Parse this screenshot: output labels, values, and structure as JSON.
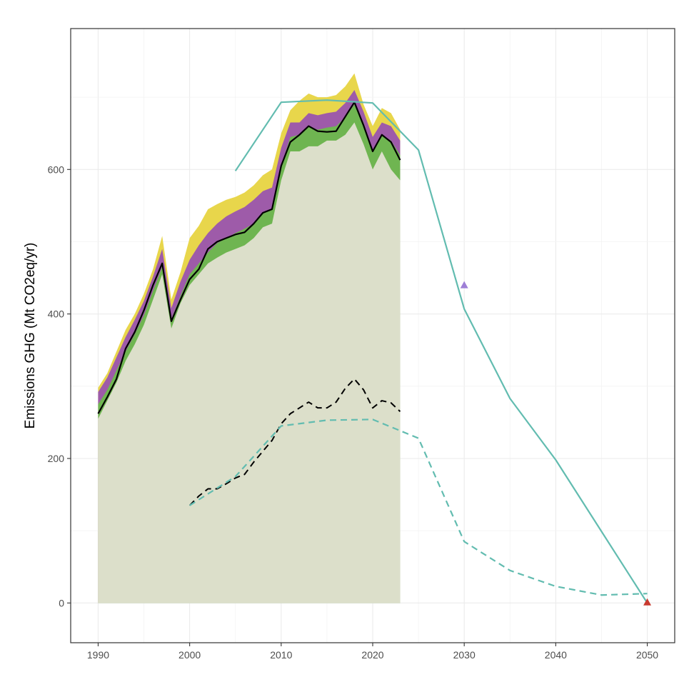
{
  "chart_data": {
    "type": "area",
    "title": "",
    "xlabel": "",
    "ylabel": "Emissions GHG (Mt CO2eq/yr)",
    "xlim": [
      1987,
      2053
    ],
    "ylim": [
      -55,
      795
    ],
    "x_ticks": [
      1990,
      2000,
      2010,
      2020,
      2030,
      2040,
      2050
    ],
    "y_ticks": [
      0,
      200,
      400,
      600
    ],
    "grid": true,
    "legend": "none",
    "x": [
      1990,
      1991,
      1992,
      1993,
      1994,
      1995,
      1996,
      1997,
      1998,
      1999,
      2000,
      2001,
      2002,
      2003,
      2004,
      2005,
      2006,
      2007,
      2008,
      2009,
      2010,
      2011,
      2012,
      2013,
      2014,
      2015,
      2016,
      2017,
      2018,
      2019,
      2020,
      2021,
      2022,
      2023
    ],
    "series": [
      {
        "name": "",
        "kind": "area-base",
        "color": "#dcdfca",
        "values": [
          255,
          280,
          305,
          335,
          358,
          385,
          420,
          455,
          380,
          415,
          440,
          455,
          470,
          478,
          485,
          490,
          495,
          505,
          520,
          525,
          585,
          625,
          625,
          632,
          632,
          640,
          640,
          648,
          665,
          635,
          600,
          625,
          600,
          585
        ]
      },
      {
        "name": "",
        "kind": "area-band",
        "color": "#6fb551",
        "values": [
          275,
          295,
          322,
          348,
          372,
          398,
          432,
          465,
          393,
          425,
          455,
          470,
          485,
          498,
          505,
          512,
          518,
          525,
          540,
          545,
          605,
          645,
          648,
          660,
          655,
          658,
          660,
          672,
          690,
          665,
          625,
          648,
          640,
          620
        ]
      },
      {
        "name": "",
        "kind": "area-band",
        "color": "#9e5ba9",
        "values": [
          292,
          312,
          340,
          368,
          392,
          418,
          452,
          490,
          408,
          445,
          475,
          495,
          512,
          525,
          535,
          542,
          548,
          558,
          570,
          575,
          630,
          665,
          665,
          678,
          675,
          678,
          680,
          692,
          710,
          680,
          645,
          665,
          660,
          640
        ]
      },
      {
        "name": "",
        "kind": "area-band",
        "color": "#e8d64b",
        "values": [
          298,
          318,
          348,
          378,
          400,
          428,
          462,
          508,
          420,
          458,
          505,
          522,
          545,
          552,
          558,
          562,
          568,
          578,
          592,
          600,
          650,
          682,
          695,
          705,
          700,
          700,
          703,
          715,
          733,
          690,
          660,
          685,
          678,
          655
        ]
      },
      {
        "name": "",
        "kind": "line",
        "color": "#000000",
        "dash": "solid",
        "values": [
          262,
          285,
          310,
          352,
          375,
          405,
          440,
          470,
          390,
          420,
          448,
          462,
          490,
          500,
          505,
          510,
          513,
          525,
          540,
          545,
          605,
          638,
          648,
          660,
          653,
          652,
          653,
          673,
          693,
          661,
          625,
          648,
          638,
          613
        ]
      }
    ],
    "extra_lines": [
      {
        "name": "",
        "color": "#000000",
        "dash": "dashed",
        "points": [
          [
            2000,
            135
          ],
          [
            2001,
            148
          ],
          [
            2002,
            158
          ],
          [
            2003,
            158
          ],
          [
            2004,
            165
          ],
          [
            2005,
            173
          ],
          [
            2006,
            178
          ],
          [
            2007,
            195
          ],
          [
            2008,
            210
          ],
          [
            2009,
            225
          ],
          [
            2010,
            248
          ],
          [
            2011,
            262
          ],
          [
            2012,
            270
          ],
          [
            2013,
            278
          ],
          [
            2014,
            270
          ],
          [
            2015,
            270
          ],
          [
            2016,
            278
          ],
          [
            2017,
            297
          ],
          [
            2018,
            310
          ],
          [
            2019,
            295
          ],
          [
            2020,
            270
          ],
          [
            2021,
            280
          ],
          [
            2022,
            277
          ],
          [
            2023,
            265
          ]
        ]
      },
      {
        "name": "",
        "color": "#62bcb0",
        "dash": "solid",
        "points": [
          [
            2005,
            598
          ],
          [
            2010,
            693
          ],
          [
            2015,
            696
          ],
          [
            2020,
            692
          ],
          [
            2025,
            627
          ],
          [
            2030,
            407
          ],
          [
            2035,
            283
          ],
          [
            2040,
            198
          ],
          [
            2050,
            0
          ]
        ]
      },
      {
        "name": "",
        "color": "#62bcb0",
        "dash": "dashed",
        "points": [
          [
            2000,
            135
          ],
          [
            2005,
            175
          ],
          [
            2010,
            245
          ],
          [
            2015,
            253
          ],
          [
            2020,
            254
          ],
          [
            2025,
            228
          ],
          [
            2030,
            85
          ],
          [
            2035,
            45
          ],
          [
            2040,
            23
          ],
          [
            2045,
            11
          ],
          [
            2050,
            13
          ]
        ]
      }
    ],
    "markers": [
      {
        "name": "",
        "shape": "triangle",
        "color": "#9e7fd6",
        "x": 2030,
        "y": 440
      },
      {
        "name": "",
        "shape": "triangle",
        "color": "#c83a2f",
        "x": 2050,
        "y": 1
      }
    ]
  }
}
